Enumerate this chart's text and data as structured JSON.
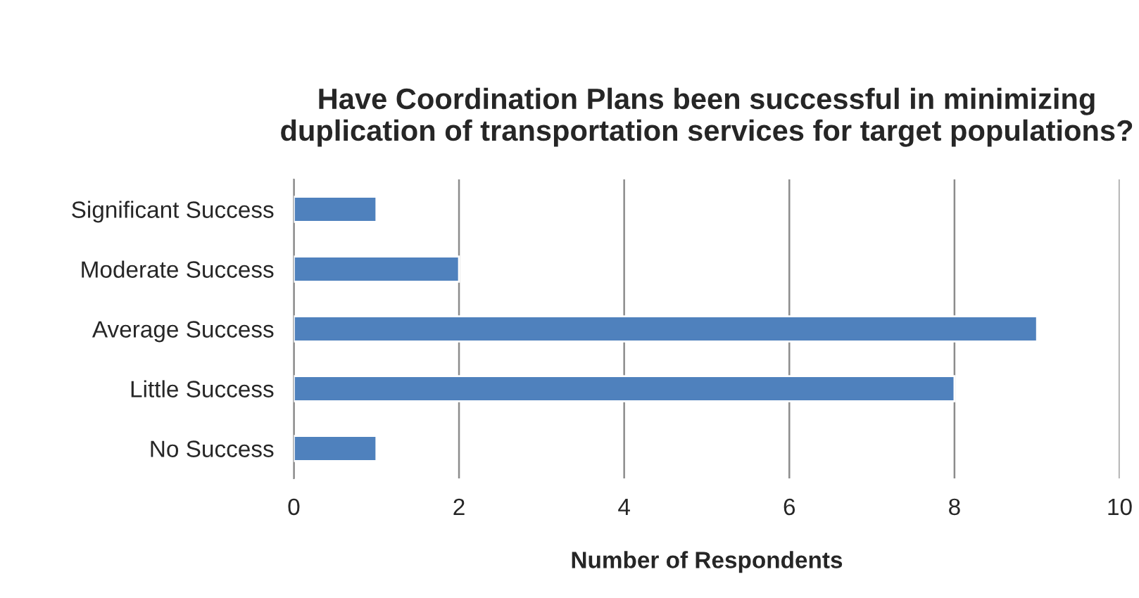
{
  "chart_data": {
    "type": "bar",
    "orientation": "horizontal",
    "title": "Have Coordination Plans been successful in minimizing duplication of transportation services for target populations?",
    "xlabel": "Number of Respondents",
    "categories": [
      "Significant Success",
      "Moderate Success",
      "Average Success",
      "Little Success",
      "No Success"
    ],
    "values": [
      1,
      2,
      9,
      8,
      1
    ],
    "color": "#4f81bd",
    "xlim": [
      0,
      10
    ],
    "xticks": [
      0,
      2,
      4,
      6,
      8,
      10
    ],
    "grid": "x"
  }
}
